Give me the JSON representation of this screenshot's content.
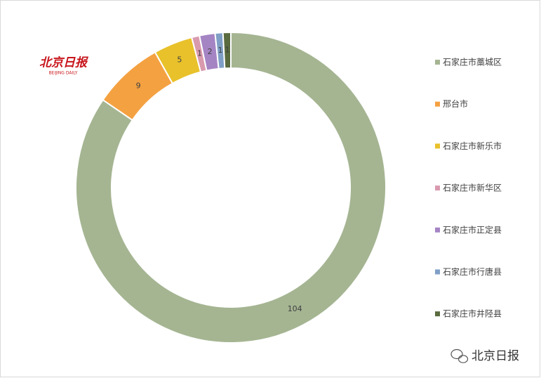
{
  "chart_data": {
    "type": "donut",
    "categories": [
      "石家庄市藁城区",
      "邢台市",
      "石家庄市新乐市",
      "石家庄市新华区",
      "石家庄市正定县",
      "石家庄市行唐县",
      "石家庄市井陉县"
    ],
    "values": [
      104,
      9,
      5,
      1,
      2,
      1,
      1
    ],
    "colors": [
      "#a5b592",
      "#f4a142",
      "#e8c12b",
      "#d99aae",
      "#a584c4",
      "#7f9fc6",
      "#5a6b3f"
    ],
    "legend": "right"
  },
  "logo": {
    "title": "北京日报",
    "subtitle": "BEIJING DAILY"
  },
  "watermark": "北京日报"
}
